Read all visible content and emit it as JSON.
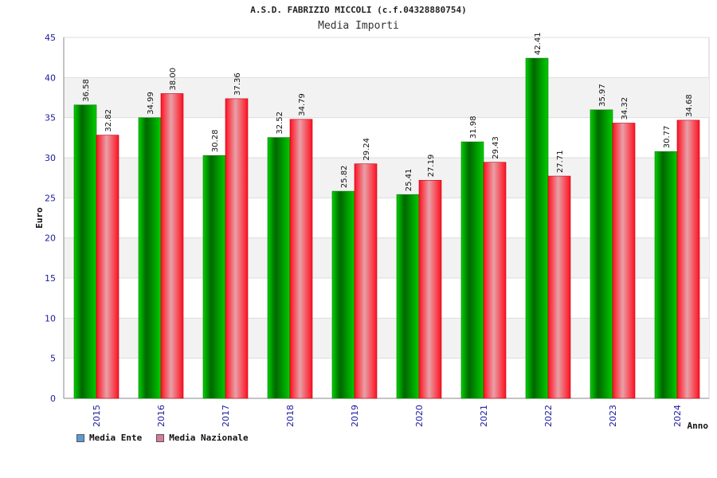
{
  "header": {
    "title": "A.S.D. FABRIZIO MICCOLI (c.f.04328880754)",
    "subtitle": "Media Importi"
  },
  "legend": {
    "items": [
      {
        "label": "Media Ente",
        "color": "#5b9bd5"
      },
      {
        "label": "Media Nazionale",
        "color": "#d87a9b"
      }
    ]
  },
  "chart_data": {
    "type": "bar",
    "title": "Media Importi",
    "xlabel": "Anno",
    "ylabel": "Euro",
    "ylim": [
      0,
      45
    ],
    "yticks": [
      0,
      5,
      10,
      15,
      20,
      25,
      30,
      35,
      40,
      45
    ],
    "categories": [
      "2015",
      "2016",
      "2017",
      "2018",
      "2019",
      "2020",
      "2021",
      "2022",
      "2023",
      "2024"
    ],
    "series": [
      {
        "name": "Media Ente",
        "color": "#00b000",
        "values": [
          36.58,
          34.99,
          30.28,
          32.52,
          25.82,
          25.41,
          31.98,
          42.41,
          35.97,
          30.77
        ],
        "labels": [
          "36.58",
          "34.99",
          "30.28",
          "32.52",
          "25.82",
          "25.41",
          "31.98",
          "42.41",
          "35.97",
          "30.77"
        ]
      },
      {
        "name": "Media Nazionale",
        "color": "#ee1122",
        "values": [
          32.82,
          38.0,
          37.36,
          34.79,
          29.24,
          27.19,
          29.43,
          27.71,
          34.32,
          34.68
        ],
        "labels": [
          "32.82",
          "38.00",
          "37.36",
          "34.79",
          "29.24",
          "27.19",
          "29.43",
          "27.71",
          "34.32",
          "34.68"
        ]
      }
    ],
    "grid": true,
    "legend_position": "bottom-left"
  }
}
